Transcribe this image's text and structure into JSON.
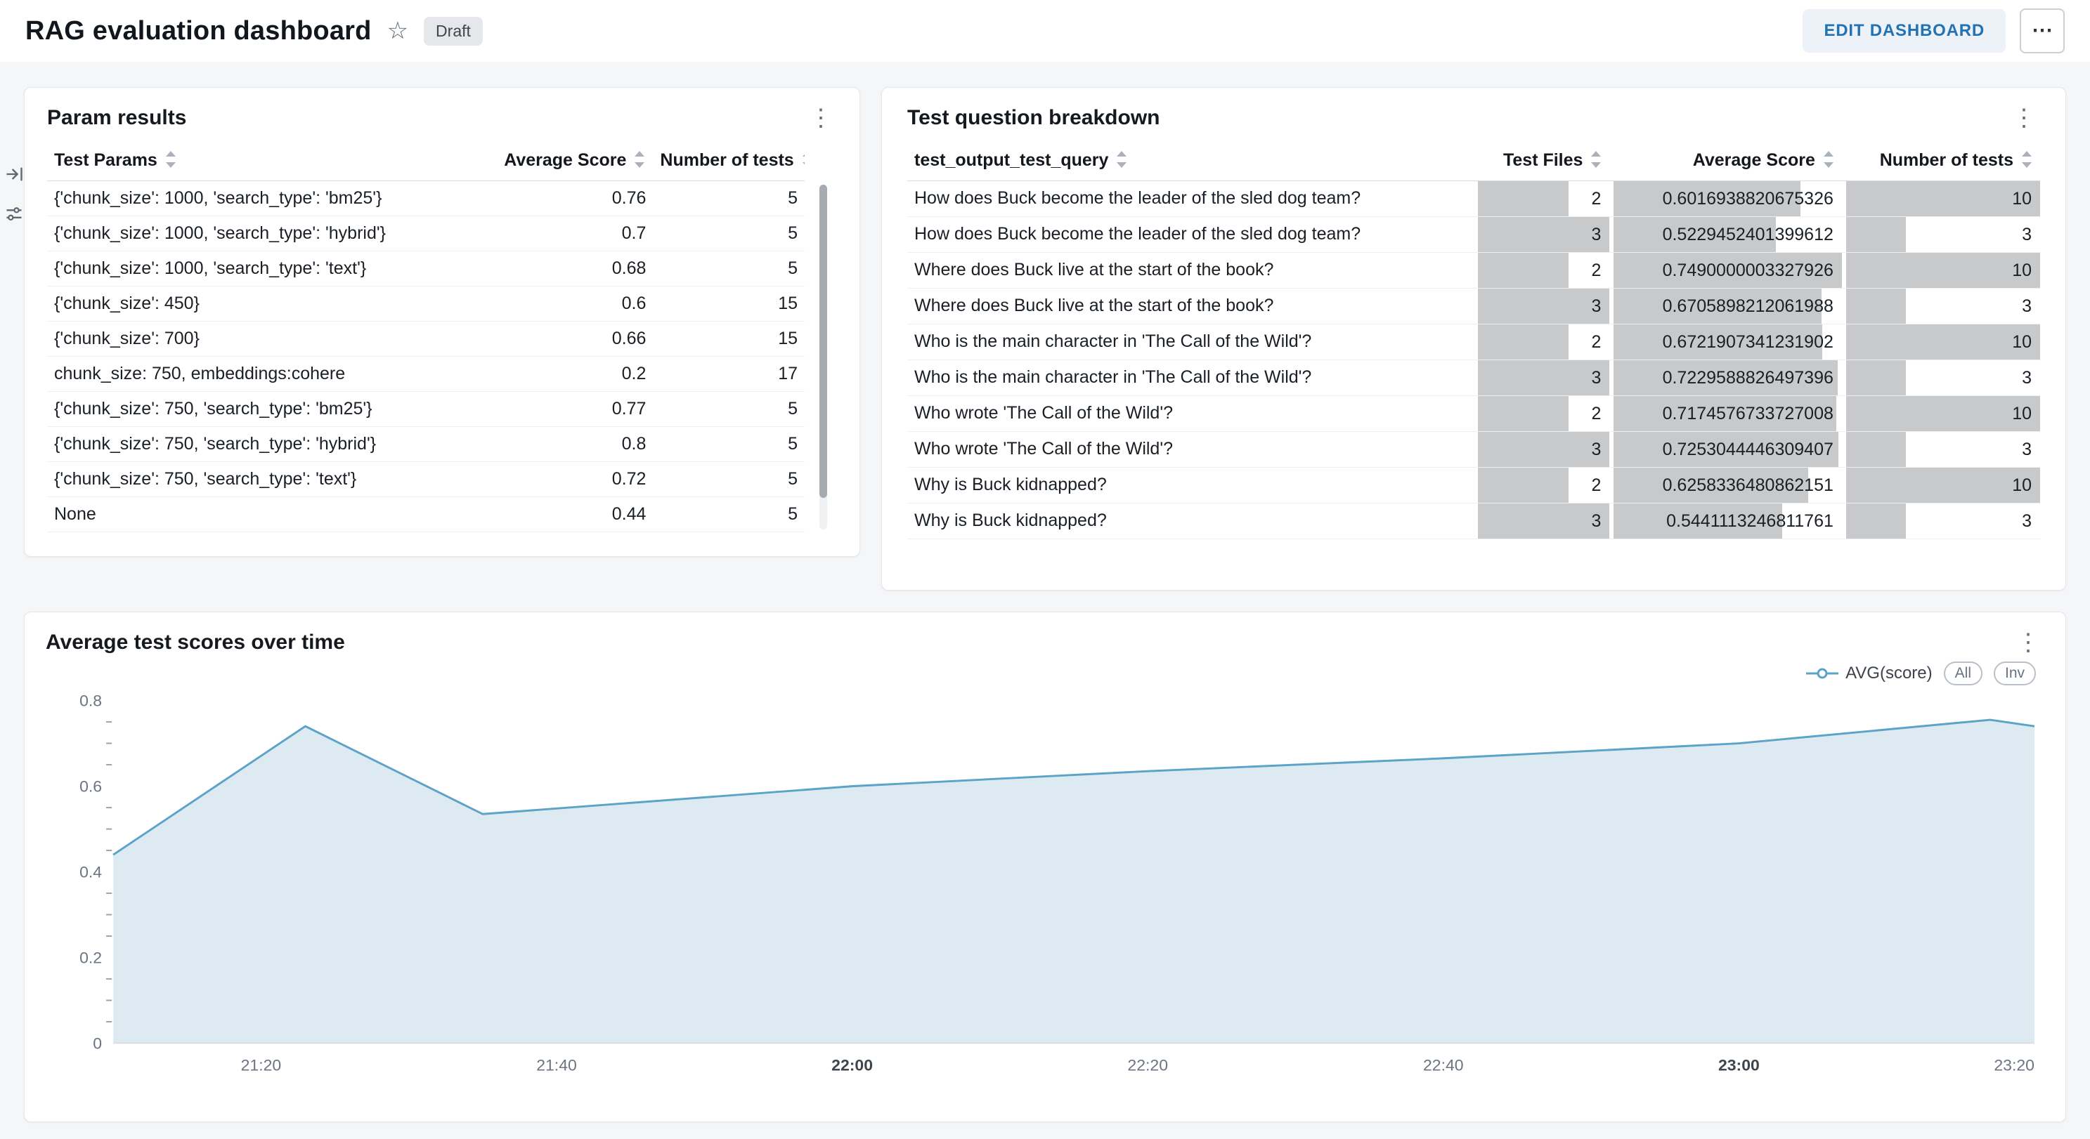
{
  "header": {
    "title": "RAG evaluation dashboard",
    "draft_badge": "Draft",
    "edit_button": "EDIT DASHBOARD"
  },
  "icons": {
    "star": "☆",
    "kebab": "⋮",
    "more": "⋯"
  },
  "colors": {
    "accent_blue": "#2272b4",
    "bar_gray": "#c8c9cb",
    "chart_line": "#5ba3c7",
    "chart_fill": "#ddeaf2"
  },
  "param_results": {
    "title": "Param results",
    "columns": [
      "Test Params",
      "Average Score",
      "Number of tests"
    ],
    "rows": [
      [
        "{'chunk_size': 1000, 'search_type': 'bm25'}",
        "0.76",
        "5"
      ],
      [
        "{'chunk_size': 1000, 'search_type': 'hybrid'}",
        "0.7",
        "5"
      ],
      [
        "{'chunk_size': 1000, 'search_type': 'text'}",
        "0.68",
        "5"
      ],
      [
        "{'chunk_size': 450}",
        "0.6",
        "15"
      ],
      [
        "{'chunk_size': 700}",
        "0.66",
        "15"
      ],
      [
        "chunk_size: 750, embeddings:cohere",
        "0.2",
        "17"
      ],
      [
        "{'chunk_size': 750, 'search_type': 'bm25'}",
        "0.77",
        "5"
      ],
      [
        "{'chunk_size': 750, 'search_type': 'hybrid'}",
        "0.8",
        "5"
      ],
      [
        "{'chunk_size': 750, 'search_type': 'text'}",
        "0.72",
        "5"
      ],
      [
        "None",
        "0.44",
        "5"
      ]
    ]
  },
  "question_breakdown": {
    "title": "Test question breakdown",
    "columns": [
      "test_output_test_query",
      "Test Files",
      "Average Score",
      "Number of tests"
    ],
    "max": {
      "test_files": 3,
      "number_of_tests": 10
    },
    "rows": [
      {
        "query": "How does Buck become the leader of the sled dog team?",
        "test_files": 2,
        "avg_score": "0.6016938820675326",
        "num_tests": 10
      },
      {
        "query": "How does Buck become the leader of the sled dog team?",
        "test_files": 3,
        "avg_score": "0.5229452401399612",
        "num_tests": 3
      },
      {
        "query": "Where does Buck live at the start of the book?",
        "test_files": 2,
        "avg_score": "0.7490000003327926",
        "num_tests": 10
      },
      {
        "query": "Where does Buck live at the start of the book?",
        "test_files": 3,
        "avg_score": "0.6705898212061988",
        "num_tests": 3
      },
      {
        "query": "Who is the main character in 'The Call of the Wild'?",
        "test_files": 2,
        "avg_score": "0.6721907341231902",
        "num_tests": 10
      },
      {
        "query": "Who is the main character in 'The Call of the Wild'?",
        "test_files": 3,
        "avg_score": "0.7229588826497396",
        "num_tests": 3
      },
      {
        "query": "Who wrote 'The Call of the Wild'?",
        "test_files": 2,
        "avg_score": "0.7174576733727008",
        "num_tests": 10
      },
      {
        "query": "Who wrote 'The Call of the Wild'?",
        "test_files": 3,
        "avg_score": "0.7253044446309407",
        "num_tests": 3
      },
      {
        "query": "Why is Buck kidnapped?",
        "test_files": 2,
        "avg_score": "0.6258336480862151",
        "num_tests": 10
      },
      {
        "query": "Why is Buck kidnapped?",
        "test_files": 3,
        "avg_score": "0.5441113246811761",
        "num_tests": 3
      }
    ]
  },
  "chart_card": {
    "title": "Average test scores over time",
    "legend_label": "AVG(score)",
    "zoom_all": "All",
    "zoom_inv": "Inv"
  },
  "chart_data": {
    "type": "area",
    "title": "Average test scores over time",
    "series_name": "AVG(score)",
    "x_unit": "minutes after 21:10",
    "x_min": 0,
    "x_max": 130,
    "y_max": 0.8,
    "y_ticks": [
      0,
      0.2,
      0.4,
      0.6,
      0.8
    ],
    "y_minor_step": 0.05,
    "x_ticks": [
      {
        "t": 10,
        "label": "21:20",
        "bold": false
      },
      {
        "t": 30,
        "label": "21:40",
        "bold": false
      },
      {
        "t": 50,
        "label": "22:00",
        "bold": true
      },
      {
        "t": 70,
        "label": "22:20",
        "bold": false
      },
      {
        "t": 90,
        "label": "22:40",
        "bold": false
      },
      {
        "t": 110,
        "label": "23:00",
        "bold": true
      },
      {
        "t": 130,
        "label": "23:20",
        "bold": false
      }
    ],
    "points": [
      [
        0,
        0.44
      ],
      [
        13,
        0.74
      ],
      [
        25,
        0.535
      ],
      [
        50,
        0.6
      ],
      [
        70,
        0.635
      ],
      [
        90,
        0.665
      ],
      [
        110,
        0.7
      ],
      [
        127,
        0.755
      ],
      [
        130,
        0.74
      ]
    ],
    "line_color": "#5ba3c7",
    "fill_color": "#ddeaf2",
    "grid": false,
    "legend_position": "top-right"
  }
}
